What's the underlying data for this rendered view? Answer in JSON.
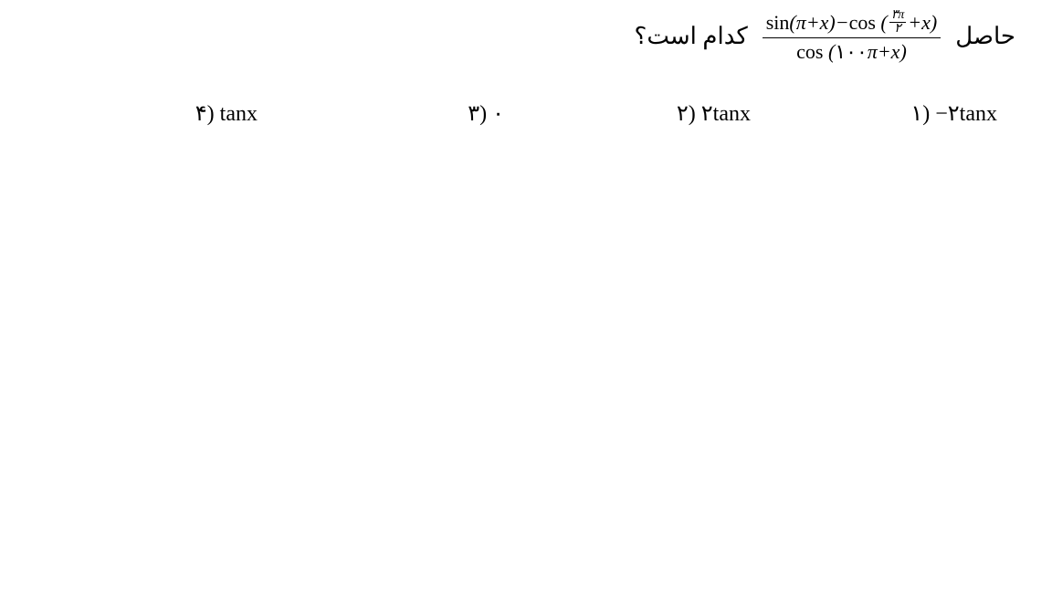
{
  "question": {
    "prefix_word": "حاصل",
    "suffix_word": "کدام است؟",
    "fraction": {
      "numerator_sin": "sin",
      "numerator_sin_arg_open": "(",
      "numerator_sin_arg_pi": "π",
      "numerator_sin_arg_plus": "+",
      "numerator_sin_arg_x": "x",
      "numerator_sin_arg_close": ")",
      "numerator_minus": "−",
      "numerator_cos": "cos",
      "numerator_cos_arg_open": "(",
      "small_frac_num": "۳π",
      "small_frac_den": "۲",
      "numerator_cos_arg_plus": "+",
      "numerator_cos_arg_x": "x",
      "numerator_cos_arg_close": ")",
      "denominator_cos": "cos",
      "denominator_open": "(",
      "denominator_hundred": "۱۰۰",
      "denominator_pi": "π",
      "denominator_plus": "+",
      "denominator_x": "x",
      "denominator_close": ")"
    }
  },
  "options": {
    "opt1_label": "۱)",
    "opt1_text_prefix": "−۲",
    "opt1_text_tan": "tanx",
    "opt2_label": "۲)",
    "opt2_text_prefix": "۲",
    "opt2_text_tan": "tanx",
    "opt3_label": "۳)",
    "opt3_text": "۰",
    "opt4_label": "۴)",
    "opt4_text_tan": "tanx"
  },
  "colors": {
    "text": "#000000",
    "background": "#ffffff"
  },
  "fonts": {
    "main_size": 24,
    "question_size": 26,
    "fraction_size": 22
  }
}
